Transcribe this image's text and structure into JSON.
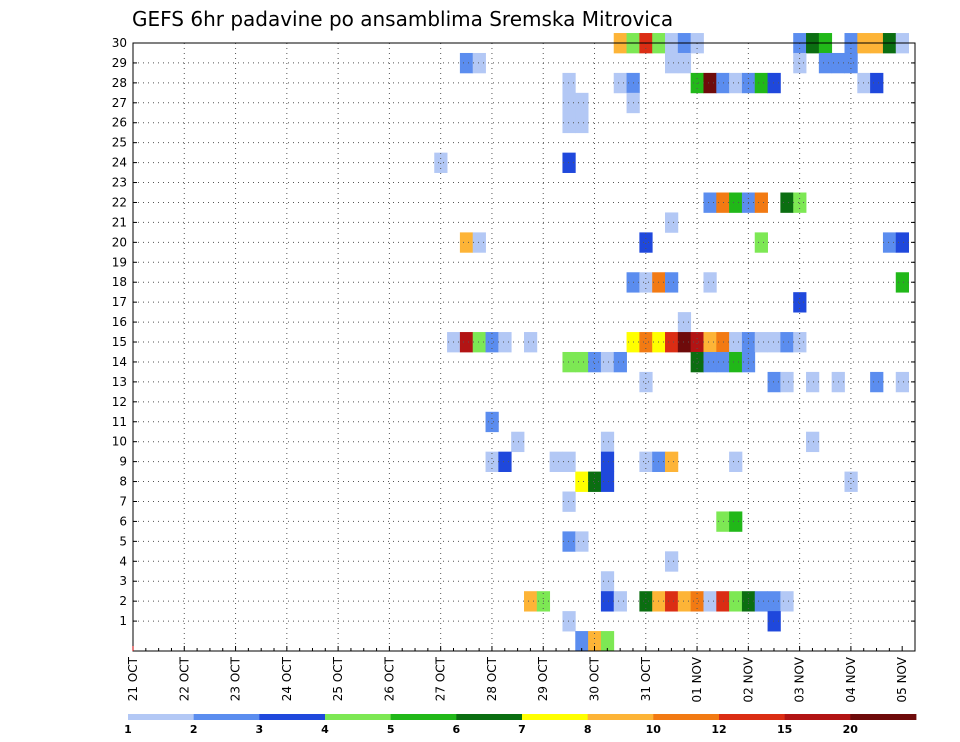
{
  "chart_data": {
    "type": "heatmap",
    "title": "GEFS 6hr padavine po ansamblima Sremska Mitrovica",
    "ylim": [
      0,
      30
    ],
    "y_ticks": [
      1,
      2,
      3,
      4,
      5,
      6,
      7,
      8,
      9,
      10,
      11,
      12,
      13,
      14,
      15,
      16,
      17,
      18,
      19,
      20,
      21,
      22,
      23,
      24,
      25,
      26,
      27,
      28,
      29,
      30
    ],
    "x_tick_labels": [
      "21 OCT",
      "22 OCT",
      "23 OCT",
      "24 OCT",
      "25 OCT",
      "26 OCT",
      "27 OCT",
      "28 OCT",
      "29 OCT",
      "30 OCT",
      "31 OCT",
      "01 NOV",
      "02 NOV",
      "03 NOV",
      "04 NOV",
      "05 NOV"
    ],
    "time_steps_per_day": 4,
    "grid": true,
    "colorbar": {
      "bounds": [
        "1",
        "2",
        "3",
        "4",
        "5",
        "6",
        "7",
        "8",
        "10",
        "12",
        "15",
        "20"
      ],
      "colors": [
        "#b3c8f5",
        "#5b8def",
        "#1f48dc",
        "#7de854",
        "#21b819",
        "#0b6e11",
        "#ffff00",
        "#fdb437",
        "#f27a13",
        "#db2d14",
        "#b21414",
        "#6e0b0b"
      ]
    },
    "cells": [
      {
        "m": 30,
        "t": "30 OCT 12",
        "c": 7
      },
      {
        "m": 30,
        "t": "30 OCT 18",
        "c": 3
      },
      {
        "m": 30,
        "t": "31 OCT 00",
        "c": 9
      },
      {
        "m": 30,
        "t": "31 OCT 06",
        "c": 3
      },
      {
        "m": 30,
        "t": "31 OCT 12",
        "c": 0
      },
      {
        "m": 30,
        "t": "31 OCT 18",
        "c": 1
      },
      {
        "m": 30,
        "t": "01 NOV 00",
        "c": 0
      },
      {
        "m": 30,
        "t": "03 NOV 00",
        "c": 1
      },
      {
        "m": 30,
        "t": "03 NOV 06",
        "c": 5
      },
      {
        "m": 30,
        "t": "03 NOV 12",
        "c": 4
      },
      {
        "m": 30,
        "t": "04 NOV 00",
        "c": 1
      },
      {
        "m": 30,
        "t": "04 NOV 06",
        "c": 7
      },
      {
        "m": 30,
        "t": "04 NOV 12",
        "c": 7
      },
      {
        "m": 30,
        "t": "04 NOV 18",
        "c": 5
      },
      {
        "m": 30,
        "t": "05 NOV 00",
        "c": 0
      },
      {
        "m": 29,
        "t": "27 OCT 12",
        "c": 1
      },
      {
        "m": 29,
        "t": "27 OCT 18",
        "c": 0
      },
      {
        "m": 29,
        "t": "31 OCT 12",
        "c": 0
      },
      {
        "m": 29,
        "t": "31 OCT 18",
        "c": 0
      },
      {
        "m": 29,
        "t": "03 NOV 00",
        "c": 0
      },
      {
        "m": 29,
        "t": "03 NOV 12",
        "c": 1
      },
      {
        "m": 29,
        "t": "03 NOV 18",
        "c": 1
      },
      {
        "m": 29,
        "t": "04 NOV 00",
        "c": 1
      },
      {
        "m": 28,
        "t": "29 OCT 12",
        "c": 0
      },
      {
        "m": 28,
        "t": "30 OCT 12",
        "c": 0
      },
      {
        "m": 28,
        "t": "30 OCT 18",
        "c": 1
      },
      {
        "m": 28,
        "t": "01 NOV 00",
        "c": 4
      },
      {
        "m": 28,
        "t": "01 NOV 06",
        "c": 11
      },
      {
        "m": 28,
        "t": "01 NOV 12",
        "c": 1
      },
      {
        "m": 28,
        "t": "01 NOV 18",
        "c": 0
      },
      {
        "m": 28,
        "t": "02 NOV 00",
        "c": 1
      },
      {
        "m": 28,
        "t": "02 NOV 06",
        "c": 4
      },
      {
        "m": 28,
        "t": "02 NOV 12",
        "c": 2
      },
      {
        "m": 28,
        "t": "04 NOV 06",
        "c": 0
      },
      {
        "m": 28,
        "t": "04 NOV 12",
        "c": 2
      },
      {
        "m": 27,
        "t": "29 OCT 12",
        "c": 0
      },
      {
        "m": 27,
        "t": "29 OCT 18",
        "c": 0
      },
      {
        "m": 27,
        "t": "30 OCT 18",
        "c": 0
      },
      {
        "m": 26,
        "t": "29 OCT 12",
        "c": 0
      },
      {
        "m": 26,
        "t": "29 OCT 18",
        "c": 0
      },
      {
        "m": 24,
        "t": "27 OCT 00",
        "c": 0
      },
      {
        "m": 24,
        "t": "29 OCT 12",
        "c": 2
      },
      {
        "m": 22,
        "t": "01 NOV 06",
        "c": 1
      },
      {
        "m": 22,
        "t": "01 NOV 12",
        "c": 8
      },
      {
        "m": 22,
        "t": "01 NOV 18",
        "c": 4
      },
      {
        "m": 22,
        "t": "02 NOV 00",
        "c": 1
      },
      {
        "m": 22,
        "t": "02 NOV 06",
        "c": 8
      },
      {
        "m": 22,
        "t": "02 NOV 18",
        "c": 5
      },
      {
        "m": 22,
        "t": "03 NOV 00",
        "c": 3
      },
      {
        "m": 21,
        "t": "31 OCT 12",
        "c": 0
      },
      {
        "m": 20,
        "t": "27 OCT 12",
        "c": 7
      },
      {
        "m": 20,
        "t": "27 OCT 18",
        "c": 0
      },
      {
        "m": 20,
        "t": "31 OCT 00",
        "c": 2
      },
      {
        "m": 20,
        "t": "02 NOV 06",
        "c": 3
      },
      {
        "m": 20,
        "t": "04 NOV 18",
        "c": 1
      },
      {
        "m": 20,
        "t": "05 NOV 00",
        "c": 2
      },
      {
        "m": 18,
        "t": "30 OCT 18",
        "c": 1
      },
      {
        "m": 18,
        "t": "31 OCT 00",
        "c": 0
      },
      {
        "m": 18,
        "t": "31 OCT 06",
        "c": 8
      },
      {
        "m": 18,
        "t": "31 OCT 12",
        "c": 1
      },
      {
        "m": 18,
        "t": "01 NOV 06",
        "c": 0
      },
      {
        "m": 18,
        "t": "05 NOV 00",
        "c": 4
      },
      {
        "m": 17,
        "t": "03 NOV 00",
        "c": 2
      },
      {
        "m": 16,
        "t": "31 OCT 18",
        "c": 0
      },
      {
        "m": 15,
        "t": "27 OCT 06",
        "c": 0
      },
      {
        "m": 15,
        "t": "27 OCT 12",
        "c": 10
      },
      {
        "m": 15,
        "t": "27 OCT 18",
        "c": 3
      },
      {
        "m": 15,
        "t": "28 OCT 00",
        "c": 1
      },
      {
        "m": 15,
        "t": "28 OCT 06",
        "c": 0
      },
      {
        "m": 15,
        "t": "28 OCT 18",
        "c": 0
      },
      {
        "m": 15,
        "t": "30 OCT 18",
        "c": 6
      },
      {
        "m": 15,
        "t": "31 OCT 00",
        "c": 8
      },
      {
        "m": 15,
        "t": "31 OCT 06",
        "c": 6
      },
      {
        "m": 15,
        "t": "31 OCT 12",
        "c": 9
      },
      {
        "m": 15,
        "t": "31 OCT 18",
        "c": 11
      },
      {
        "m": 15,
        "t": "01 NOV 00",
        "c": 10
      },
      {
        "m": 15,
        "t": "01 NOV 06",
        "c": 7
      },
      {
        "m": 15,
        "t": "01 NOV 12",
        "c": 8
      },
      {
        "m": 15,
        "t": "01 NOV 18",
        "c": 0
      },
      {
        "m": 15,
        "t": "02 NOV 00",
        "c": 1
      },
      {
        "m": 15,
        "t": "02 NOV 06",
        "c": 0
      },
      {
        "m": 15,
        "t": "02 NOV 12",
        "c": 0
      },
      {
        "m": 15,
        "t": "02 NOV 18",
        "c": 1
      },
      {
        "m": 15,
        "t": "03 NOV 00",
        "c": 0
      },
      {
        "m": 14,
        "t": "29 OCT 12",
        "c": 3
      },
      {
        "m": 14,
        "t": "29 OCT 18",
        "c": 3
      },
      {
        "m": 14,
        "t": "30 OCT 00",
        "c": 1
      },
      {
        "m": 14,
        "t": "30 OCT 06",
        "c": 0
      },
      {
        "m": 14,
        "t": "30 OCT 12",
        "c": 1
      },
      {
        "m": 14,
        "t": "01 NOV 00",
        "c": 5
      },
      {
        "m": 14,
        "t": "01 NOV 06",
        "c": 1
      },
      {
        "m": 14,
        "t": "01 NOV 12",
        "c": 1
      },
      {
        "m": 14,
        "t": "01 NOV 18",
        "c": 4
      },
      {
        "m": 14,
        "t": "02 NOV 00",
        "c": 1
      },
      {
        "m": 13,
        "t": "31 OCT 00",
        "c": 0
      },
      {
        "m": 13,
        "t": "02 NOV 12",
        "c": 1
      },
      {
        "m": 13,
        "t": "02 NOV 18",
        "c": 0
      },
      {
        "m": 13,
        "t": "03 NOV 06",
        "c": 0
      },
      {
        "m": 13,
        "t": "03 NOV 18",
        "c": 0
      },
      {
        "m": 13,
        "t": "04 NOV 12",
        "c": 1
      },
      {
        "m": 13,
        "t": "05 NOV 00",
        "c": 0
      },
      {
        "m": 11,
        "t": "28 OCT 00",
        "c": 1
      },
      {
        "m": 10,
        "t": "28 OCT 12",
        "c": 0
      },
      {
        "m": 10,
        "t": "30 OCT 06",
        "c": 0
      },
      {
        "m": 10,
        "t": "03 NOV 06",
        "c": 0
      },
      {
        "m": 9,
        "t": "28 OCT 00",
        "c": 0
      },
      {
        "m": 9,
        "t": "28 OCT 06",
        "c": 2
      },
      {
        "m": 9,
        "t": "29 OCT 06",
        "c": 0
      },
      {
        "m": 9,
        "t": "29 OCT 12",
        "c": 0
      },
      {
        "m": 9,
        "t": "30 OCT 06",
        "c": 2
      },
      {
        "m": 9,
        "t": "31 OCT 00",
        "c": 0
      },
      {
        "m": 9,
        "t": "31 OCT 06",
        "c": 1
      },
      {
        "m": 9,
        "t": "31 OCT 12",
        "c": 7
      },
      {
        "m": 9,
        "t": "01 NOV 18",
        "c": 0
      },
      {
        "m": 8,
        "t": "29 OCT 18",
        "c": 6
      },
      {
        "m": 8,
        "t": "30 OCT 00",
        "c": 5
      },
      {
        "m": 8,
        "t": "30 OCT 06",
        "c": 2
      },
      {
        "m": 8,
        "t": "04 NOV 00",
        "c": 0
      },
      {
        "m": 7,
        "t": "29 OCT 12",
        "c": 0
      },
      {
        "m": 6,
        "t": "01 NOV 12",
        "c": 3
      },
      {
        "m": 6,
        "t": "01 NOV 18",
        "c": 4
      },
      {
        "m": 5,
        "t": "29 OCT 12",
        "c": 1
      },
      {
        "m": 5,
        "t": "29 OCT 18",
        "c": 0
      },
      {
        "m": 4,
        "t": "31 OCT 12",
        "c": 0
      },
      {
        "m": 3,
        "t": "30 OCT 06",
        "c": 0
      },
      {
        "m": 2,
        "t": "28 OCT 18",
        "c": 7
      },
      {
        "m": 2,
        "t": "29 OCT 00",
        "c": 3
      },
      {
        "m": 2,
        "t": "30 OCT 06",
        "c": 2
      },
      {
        "m": 2,
        "t": "30 OCT 12",
        "c": 0
      },
      {
        "m": 2,
        "t": "31 OCT 00",
        "c": 5
      },
      {
        "m": 2,
        "t": "31 OCT 06",
        "c": 7
      },
      {
        "m": 2,
        "t": "31 OCT 12",
        "c": 9
      },
      {
        "m": 2,
        "t": "31 OCT 18",
        "c": 7
      },
      {
        "m": 2,
        "t": "01 NOV 00",
        "c": 8
      },
      {
        "m": 2,
        "t": "01 NOV 06",
        "c": 0
      },
      {
        "m": 2,
        "t": "01 NOV 12",
        "c": 9
      },
      {
        "m": 2,
        "t": "01 NOV 18",
        "c": 3
      },
      {
        "m": 2,
        "t": "02 NOV 00",
        "c": 5
      },
      {
        "m": 2,
        "t": "02 NOV 06",
        "c": 1
      },
      {
        "m": 2,
        "t": "02 NOV 12",
        "c": 1
      },
      {
        "m": 2,
        "t": "02 NOV 18",
        "c": 0
      },
      {
        "m": 1,
        "t": "29 OCT 12",
        "c": 0
      },
      {
        "m": 1,
        "t": "02 NOV 12",
        "c": 2
      },
      {
        "m": 0,
        "t": "29 OCT 18",
        "c": 1
      },
      {
        "m": 0,
        "t": "30 OCT 00",
        "c": 7
      },
      {
        "m": 0,
        "t": "30 OCT 06",
        "c": 3
      }
    ]
  }
}
